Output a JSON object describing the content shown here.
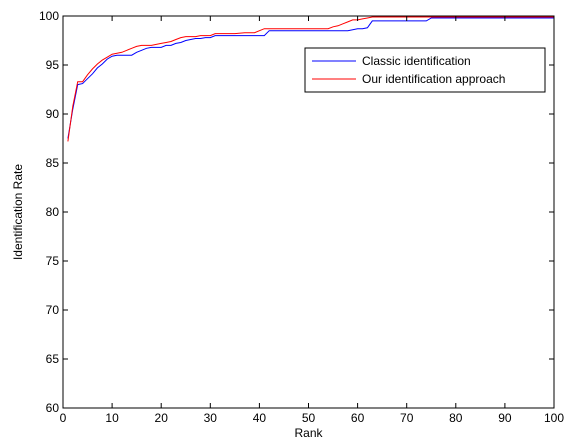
{
  "chart_data": {
    "type": "line",
    "title": "",
    "xlabel": "Rank",
    "ylabel": "Identification Rate",
    "xlim": [
      0,
      100
    ],
    "ylim": [
      60,
      100
    ],
    "xticks": [
      0,
      10,
      20,
      30,
      40,
      50,
      60,
      70,
      80,
      90,
      100
    ],
    "yticks": [
      60,
      65,
      70,
      75,
      80,
      85,
      90,
      95,
      100
    ],
    "grid": false,
    "legend_position": "top-right",
    "series": [
      {
        "name": "Classic identification",
        "color": "#0000ff",
        "x": [
          1,
          2,
          3,
          4,
          5,
          6,
          7,
          8,
          9,
          10,
          11,
          12,
          13,
          14,
          15,
          16,
          17,
          18,
          19,
          20,
          21,
          22,
          23,
          24,
          25,
          26,
          27,
          28,
          29,
          30,
          31,
          33,
          35,
          37,
          39,
          41,
          42,
          44,
          46,
          48,
          50,
          52,
          54,
          56,
          58,
          60,
          61,
          62,
          63,
          64,
          66,
          68,
          70,
          72,
          74,
          75,
          78,
          80,
          85,
          90,
          95,
          100
        ],
        "y": [
          87.5,
          90.5,
          93.0,
          93.1,
          93.6,
          94.1,
          94.7,
          95.1,
          95.6,
          95.9,
          96.0,
          96.0,
          96.0,
          96.0,
          96.3,
          96.5,
          96.7,
          96.8,
          96.8,
          96.8,
          97.0,
          97.0,
          97.2,
          97.3,
          97.5,
          97.6,
          97.7,
          97.7,
          97.8,
          97.8,
          98.0,
          98.0,
          98.0,
          98.0,
          98.0,
          98.0,
          98.5,
          98.5,
          98.5,
          98.5,
          98.5,
          98.5,
          98.5,
          98.5,
          98.5,
          98.7,
          98.7,
          98.8,
          99.5,
          99.5,
          99.5,
          99.5,
          99.5,
          99.5,
          99.5,
          99.8,
          99.8,
          99.8,
          99.8,
          99.8,
          99.8,
          99.8
        ]
      },
      {
        "name": "Our identification approach",
        "color": "#ff0000",
        "x": [
          1,
          2,
          3,
          4,
          5,
          6,
          7,
          8,
          9,
          10,
          11,
          12,
          13,
          14,
          15,
          16,
          17,
          18,
          19,
          20,
          21,
          22,
          23,
          24,
          25,
          26,
          27,
          28,
          29,
          30,
          31,
          33,
          35,
          37,
          39,
          41,
          43,
          45,
          47,
          49,
          51,
          53,
          54,
          55,
          56,
          57,
          58,
          59,
          60,
          61,
          62,
          63,
          65,
          70,
          75,
          80,
          85,
          90,
          95,
          100
        ],
        "y": [
          87.2,
          90.8,
          93.3,
          93.3,
          94.0,
          94.6,
          95.1,
          95.5,
          95.8,
          96.1,
          96.2,
          96.3,
          96.5,
          96.7,
          96.9,
          97.0,
          97.0,
          97.0,
          97.1,
          97.2,
          97.3,
          97.4,
          97.6,
          97.8,
          97.9,
          97.9,
          97.9,
          98.0,
          98.0,
          98.0,
          98.2,
          98.2,
          98.2,
          98.3,
          98.3,
          98.7,
          98.7,
          98.7,
          98.7,
          98.7,
          98.7,
          98.7,
          98.7,
          98.9,
          99.0,
          99.2,
          99.4,
          99.6,
          99.6,
          99.7,
          99.8,
          99.9,
          99.9,
          99.9,
          99.9,
          99.9,
          99.9,
          99.9,
          99.9,
          99.9
        ]
      }
    ]
  }
}
